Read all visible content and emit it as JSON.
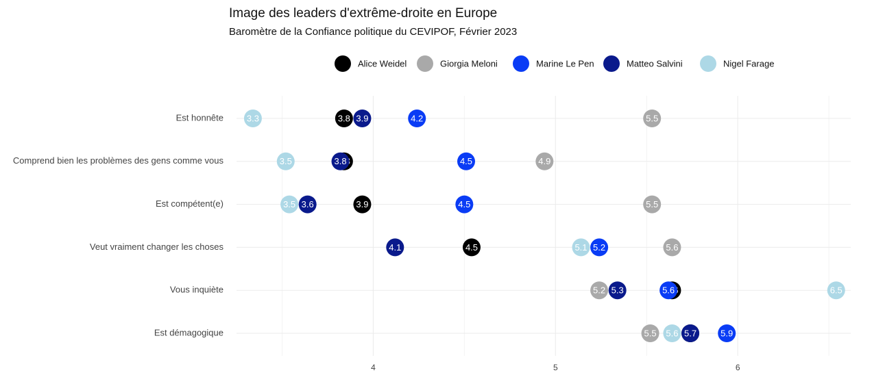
{
  "chart_data": {
    "type": "dot",
    "title": "Image des leaders d'extrême-droite en Europe",
    "subtitle": "Baromètre de la Confiance politique du CEVIPOF, Février 2023",
    "categories": [
      "Est honnête",
      "Comprend bien les problèmes des gens comme vous",
      "Est compétent(e)",
      "Veut vraiment changer les choses",
      "Vous inquiète",
      "Est démagogique"
    ],
    "series": [
      {
        "name": "Alice Weidel",
        "color": "#000000",
        "values": [
          3.84,
          3.84,
          3.94,
          4.54,
          5.64,
          5.74
        ],
        "value_labels": [
          "3.8",
          "3.8",
          "3.9",
          "4.5",
          "5.6",
          "5.7"
        ]
      },
      {
        "name": "Giorgia Meloni",
        "color": "#a9a9a9",
        "values": [
          5.53,
          4.94,
          5.53,
          5.64,
          5.24,
          5.52
        ],
        "value_labels": [
          "5.5",
          "4.9",
          "5.5",
          "5.6",
          "5.2",
          "5.5"
        ]
      },
      {
        "name": "Marine Le Pen",
        "color": "#0a3cf5",
        "values": [
          4.24,
          4.51,
          4.5,
          5.24,
          5.62,
          5.94
        ],
        "value_labels": [
          "4.2",
          "4.5",
          "4.5",
          "5.2",
          "5.6",
          "5.9"
        ]
      },
      {
        "name": "Matteo Salvini",
        "color": "#0a1a8c",
        "values": [
          3.94,
          3.82,
          3.64,
          4.12,
          5.34,
          5.74
        ],
        "value_labels": [
          "3.9",
          "3.8",
          "3.6",
          "4.1",
          "5.3",
          "5.7"
        ]
      },
      {
        "name": "Nigel Farage",
        "color": "#add8e6",
        "values": [
          3.34,
          3.52,
          3.54,
          5.14,
          6.54,
          5.64
        ],
        "value_labels": [
          "3.3",
          "3.5",
          "3.5",
          "5.1",
          "6.5",
          "5.6"
        ]
      }
    ],
    "xlim": [
      3.25,
      6.62
    ],
    "xticks": [
      4,
      5,
      6
    ],
    "minor_xticks": [
      3.5,
      4.5,
      5.5,
      6.5
    ],
    "grid": true,
    "legend": "top"
  }
}
